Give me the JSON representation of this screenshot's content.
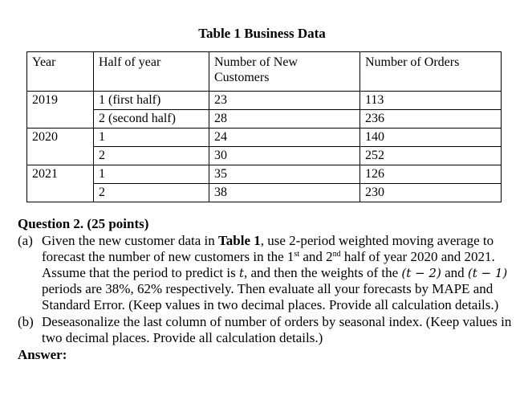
{
  "table": {
    "caption": "Table 1 Business Data",
    "headers": [
      "Year",
      "Half of year",
      "Number of New Customers",
      "Number of Orders"
    ],
    "rows": [
      [
        "2019",
        "1 (first half)",
        "23",
        "113"
      ],
      [
        "",
        "2 (second half)",
        "28",
        "236"
      ],
      [
        "2020",
        "1",
        "24",
        "140"
      ],
      [
        "",
        "2",
        "30",
        "252"
      ],
      [
        "2021",
        "1",
        "35",
        "126"
      ],
      [
        "",
        "2",
        "38",
        "230"
      ]
    ]
  },
  "question": {
    "title": "Question 2. (25 points)",
    "part_a": {
      "label": "(a)",
      "s1": "Given the new customer data in ",
      "s1_bold": "Table 1",
      "s2": ", use 2-period weighted moving average to forecast the number of new customers in the 1",
      "sup1": "st",
      "s3": " and 2",
      "sup2": "nd",
      "s4": " half of year 2020 and 2021. Assume that the period to predict is ",
      "var_t": "t",
      "s5": ", and then the weights of the ",
      "expr1": "(t − 2)",
      "s6": " and ",
      "expr2": "(t − 1)",
      "s7": " periods are 38%, 62% respectively. Then evaluate all your forecasts by MAPE and Standard Error. (Keep values in two decimal places. Provide all calculation details.)"
    },
    "part_b": {
      "label": "(b)",
      "text": "Deseasonalize the last column of number of orders by seasonal index. (Keep values in two decimal places. Provide all calculation details.)"
    },
    "answer_label": "Answer:"
  }
}
